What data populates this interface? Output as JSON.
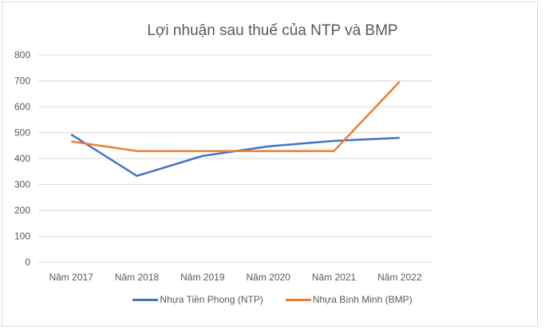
{
  "chart_data": {
    "type": "line",
    "title": "Lợi nhuận sau thuế của NTP và BMP",
    "categories": [
      "Năm 2017",
      "Năm 2018",
      "Năm 2019",
      "Năm 2020",
      "Năm 2021",
      "Năm 2022"
    ],
    "ylim": [
      0,
      800
    ],
    "yticks": [
      0,
      100,
      200,
      300,
      400,
      500,
      600,
      700,
      800
    ],
    "grid": true,
    "legend_position": "bottom",
    "series": [
      {
        "name": "Nhựa Tiền Phong (NTP)",
        "color": "#4472c4",
        "values": [
          493,
          333,
          410,
          447,
          468,
          480
        ]
      },
      {
        "name": "Nhựa Bình Minh (BMP)",
        "color": "#ed7d31",
        "values": [
          466,
          429,
          429,
          429,
          429,
          697
        ]
      }
    ]
  }
}
